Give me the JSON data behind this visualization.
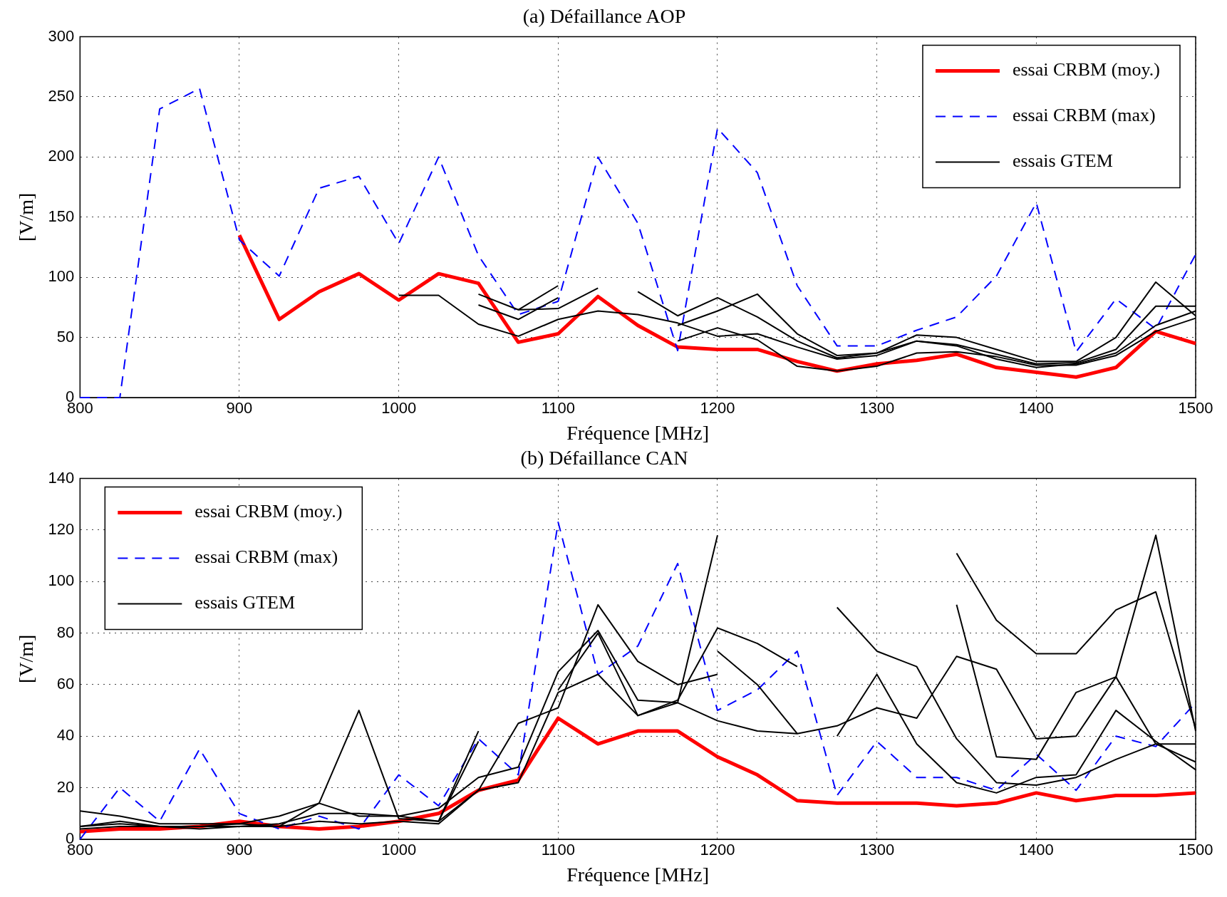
{
  "chart_data": [
    {
      "type": "line",
      "title": "(a) Défaillance AOP",
      "xlabel": "Fréquence [MHz]",
      "ylabel": "[V/m]",
      "xlim": [
        800,
        1500
      ],
      "xticks": [
        800,
        900,
        1000,
        1100,
        1200,
        1300,
        1400,
        1500
      ],
      "ylim": [
        0,
        300
      ],
      "yticks": [
        0,
        50,
        100,
        150,
        200,
        250,
        300
      ],
      "grid": true,
      "legend": "top right",
      "marker": "none",
      "x": [
        800,
        825,
        850,
        875,
        900,
        925,
        950,
        975,
        1000,
        1025,
        1050,
        1075,
        1100,
        1125,
        1150,
        1175,
        1200,
        1225,
        1250,
        1275,
        1300,
        1325,
        1350,
        1375,
        1400,
        1425,
        1450,
        1475,
        1500
      ],
      "series": [
        {
          "name": "essai CRBM (moy.)",
          "color": "#ff0000",
          "line_style": "solid",
          "values": [
            null,
            null,
            null,
            null,
            135,
            65,
            88,
            103,
            81,
            103,
            95,
            46,
            53,
            84,
            60,
            42,
            40,
            40,
            30,
            22,
            28,
            31,
            36,
            25,
            21,
            17,
            25,
            55,
            45
          ]
        },
        {
          "name": "essai CRBM (max)",
          "color": "#0000ff",
          "line_style": "dashed",
          "values": [
            0,
            0,
            240,
            257,
            131,
            101,
            174,
            184,
            128,
            200,
            118,
            69,
            80,
            200,
            145,
            39,
            224,
            187,
            93,
            43,
            43,
            56,
            67,
            101,
            162,
            38,
            82,
            57,
            119
          ]
        },
        {
          "name": "essais GTEM",
          "color": "#000000",
          "line_style": "solid",
          "x": [
            1000,
            1025,
            1050,
            1075,
            1100,
            1125,
            1150,
            1175,
            1200,
            1225,
            1250,
            1275,
            1300,
            1325,
            1350,
            1375,
            1400,
            1425,
            1450,
            1475,
            1500
          ],
          "values": [
            85,
            85,
            61,
            51,
            65,
            72,
            69,
            62,
            51,
            53,
            42,
            32,
            35,
            47,
            44,
            36,
            28,
            29,
            40,
            76,
            76
          ]
        },
        {
          "color": "#000000",
          "line_style": "solid",
          "x": [
            1050,
            1075,
            1100
          ],
          "values": [
            77,
            65,
            83
          ]
        },
        {
          "color": "#000000",
          "line_style": "solid",
          "x": [
            1050,
            1075,
            1100,
            1125
          ],
          "values": [
            86,
            73,
            74,
            91
          ]
        },
        {
          "color": "#000000",
          "line_style": "solid",
          "x": [
            1075,
            1100
          ],
          "values": [
            73,
            93
          ]
        },
        {
          "color": "#000000",
          "line_style": "solid",
          "x": [
            1150,
            1175,
            1200,
            1225,
            1250,
            1275,
            1300,
            1325,
            1350,
            1375,
            1400,
            1425,
            1450,
            1475,
            1500
          ],
          "values": [
            88,
            68,
            83,
            67,
            47,
            33,
            37,
            52,
            50,
            40,
            30,
            30,
            50,
            96,
            68
          ]
        },
        {
          "color": "#000000",
          "line_style": "solid",
          "x": [
            1175,
            1200,
            1225,
            1250,
            1275,
            1300,
            1325,
            1350,
            1375,
            1400,
            1425,
            1450,
            1475,
            1500
          ],
          "values": [
            60,
            72,
            86,
            53,
            35,
            37,
            47,
            43,
            32,
            25,
            28,
            37,
            60,
            72
          ]
        },
        {
          "color": "#000000",
          "line_style": "solid",
          "x": [
            1175,
            1200,
            1225,
            1250,
            1275,
            1300,
            1325,
            1350,
            1375,
            1400,
            1425,
            1450,
            1475,
            1500
          ],
          "values": [
            47,
            58,
            48,
            26,
            22,
            26,
            37,
            38,
            34,
            27,
            27,
            35,
            55,
            66
          ]
        }
      ]
    },
    {
      "type": "line",
      "title": "(b) Défaillance CAN",
      "xlabel": "Fréquence [MHz]",
      "ylabel": "[V/m]",
      "xlim": [
        800,
        1500
      ],
      "xticks": [
        800,
        900,
        1000,
        1100,
        1200,
        1300,
        1400,
        1500
      ],
      "ylim": [
        0,
        140
      ],
      "yticks": [
        0,
        20,
        40,
        60,
        80,
        100,
        120,
        140
      ],
      "grid": true,
      "legend": "top left",
      "marker": "none",
      "x": [
        800,
        825,
        850,
        875,
        900,
        925,
        950,
        975,
        1000,
        1025,
        1050,
        1075,
        1100,
        1125,
        1150,
        1175,
        1200,
        1225,
        1250,
        1275,
        1300,
        1325,
        1350,
        1375,
        1400,
        1425,
        1450,
        1475,
        1500
      ],
      "series": [
        {
          "name": "essai CRBM (moy.)",
          "color": "#ff0000",
          "line_style": "solid",
          "values": [
            3,
            4,
            4,
            5,
            7,
            5,
            4,
            5,
            7,
            10,
            19,
            23,
            47,
            37,
            42,
            42,
            32,
            25,
            15,
            14,
            14,
            14,
            13,
            14,
            18,
            15,
            17,
            17,
            18
          ]
        },
        {
          "name": "essai CRBM (max)",
          "color": "#0000ff",
          "line_style": "dashed",
          "values": [
            0,
            20,
            7,
            35,
            10,
            4,
            9,
            4,
            25,
            13,
            39,
            25,
            123,
            64,
            75,
            107,
            50,
            58,
            73,
            17,
            38,
            24,
            24,
            19,
            33,
            19,
            40,
            36,
            53
          ]
        },
        {
          "name": "essais GTEM",
          "color": "#000000",
          "line_style": "solid",
          "x": [
            800,
            825,
            850,
            875,
            900,
            925,
            950,
            975,
            1000,
            1025,
            1050,
            1075,
            1100,
            1125,
            1150,
            1175,
            1200
          ],
          "values": [
            11,
            9,
            6,
            6,
            6,
            9,
            14,
            9,
            9,
            12,
            24,
            28,
            65,
            81,
            54,
            53,
            118
          ]
        },
        {
          "color": "#000000",
          "line_style": "solid",
          "x": [
            800,
            825,
            850,
            875,
            900,
            925,
            950,
            975,
            1000,
            1025,
            1050
          ],
          "values": [
            5,
            7,
            5,
            5,
            6,
            5,
            14,
            50,
            8,
            7,
            42
          ]
        },
        {
          "color": "#000000",
          "line_style": "solid",
          "x": [
            800,
            825,
            850,
            875,
            900,
            925,
            950,
            975,
            1000,
            1025,
            1050
          ],
          "values": [
            5,
            6,
            5,
            4,
            5,
            6,
            10,
            10,
            9,
            7,
            38
          ]
        },
        {
          "color": "#000000",
          "line_style": "solid",
          "x": [
            800,
            825,
            850,
            875,
            900,
            925,
            950,
            975,
            1000,
            1025,
            1050,
            1075,
            1100,
            1125,
            1150,
            1175,
            1200
          ],
          "values": [
            4,
            5,
            5,
            5,
            5,
            5,
            7,
            6,
            7,
            6,
            19,
            45,
            51,
            91,
            69,
            60,
            64
          ]
        },
        {
          "color": "#000000",
          "line_style": "solid",
          "x": [
            1025,
            1050,
            1075,
            1100,
            1125,
            1150,
            1175,
            1200,
            1225,
            1250
          ],
          "values": [
            7,
            19,
            22,
            57,
            64,
            48,
            54,
            82,
            76,
            67
          ]
        },
        {
          "color": "#000000",
          "line_style": "solid",
          "x": [
            1100,
            1125,
            1150,
            1175,
            1200,
            1225,
            1250,
            1275,
            1300,
            1325,
            1350,
            1375,
            1400,
            1425,
            1450,
            1475,
            1500
          ],
          "values": [
            58,
            80,
            48,
            53,
            46,
            42,
            41,
            44,
            51,
            47,
            71,
            66,
            39,
            40,
            63,
            37,
            30
          ]
        },
        {
          "color": "#000000",
          "line_style": "solid",
          "x": [
            1200,
            1225,
            1250
          ],
          "values": [
            73,
            60,
            41
          ]
        },
        {
          "color": "#000000",
          "line_style": "solid",
          "x": [
            1275,
            1300,
            1325,
            1350,
            1375,
            1400,
            1425,
            1450,
            1475,
            1500
          ],
          "values": [
            90,
            73,
            67,
            39,
            22,
            21,
            24,
            31,
            37,
            37
          ]
        },
        {
          "color": "#000000",
          "line_style": "solid",
          "x": [
            1275,
            1300,
            1325,
            1350,
            1375,
            1400,
            1425,
            1450,
            1475,
            1500
          ],
          "values": [
            40,
            64,
            37,
            22,
            18,
            24,
            25,
            50,
            38,
            27
          ]
        },
        {
          "color": "#000000",
          "line_style": "solid",
          "x": [
            1350,
            1375,
            1400,
            1425,
            1450,
            1475,
            1500
          ],
          "values": [
            91,
            32,
            31,
            57,
            63,
            118,
            42
          ]
        },
        {
          "color": "#000000",
          "line_style": "solid",
          "x": [
            1350,
            1375,
            1400,
            1425,
            1450,
            1475,
            1500
          ],
          "values": [
            111,
            85,
            72,
            72,
            89,
            96,
            43
          ]
        }
      ]
    }
  ]
}
